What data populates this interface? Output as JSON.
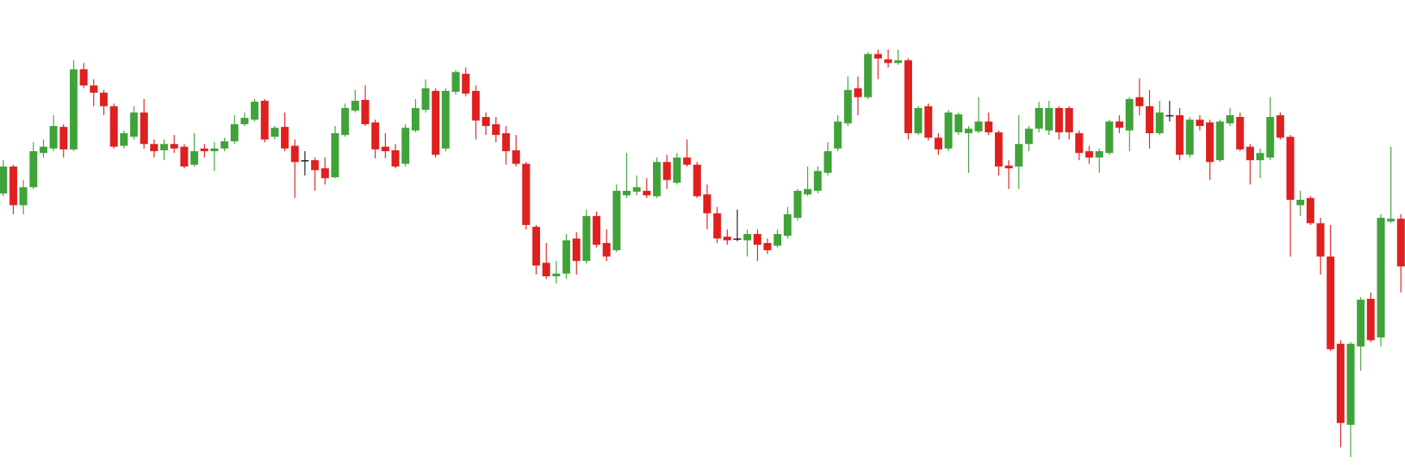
{
  "chart_data": {
    "type": "candlestick",
    "open": [
      361,
      391,
      348,
      368,
      406,
      411,
      435,
      410,
      499,
      481,
      473,
      458,
      414,
      424,
      451,
      416,
      409,
      416,
      413,
      393,
      411,
      408,
      411,
      419,
      438,
      443,
      464,
      424,
      435,
      414,
      398,
      398,
      389,
      379,
      426,
      453,
      465,
      440,
      413,
      409,
      394,
      431,
      454,
      475,
      411,
      474,
      494,
      475,
      446,
      438,
      428,
      409,
      394,
      324,
      284,
      269,
      272,
      311,
      286,
      336,
      306,
      298,
      359,
      363,
      364,
      358,
      396,
      373,
      401,
      393,
      360,
      339,
      313,
      311,
      309,
      316,
      306,
      303,
      314,
      334,
      360,
      364,
      384,
      411,
      439,
      478,
      468,
      516,
      510,
      506,
      509,
      428,
      458,
      423,
      411,
      429,
      428,
      430,
      441,
      429,
      392,
      391,
      416,
      433,
      431,
      456,
      456,
      428,
      408,
      401,
      406,
      441,
      431,
      468,
      458,
      428,
      448,
      448,
      404,
      443,
      440,
      398,
      439,
      446,
      413,
      398,
      401,
      448,
      424,
      348,
      356,
      328,
      291,
      194,
      104,
      191,
      244,
      201,
      330,
      333
    ],
    "high": [
      398,
      393,
      376,
      418,
      421,
      448,
      438,
      509,
      506,
      488,
      476,
      461,
      431,
      458,
      466,
      421,
      421,
      426,
      416,
      428,
      416,
      418,
      423,
      448,
      451,
      466,
      466,
      436,
      451,
      421,
      408,
      401,
      401,
      436,
      461,
      476,
      481,
      443,
      428,
      416,
      438,
      466,
      488,
      478,
      478,
      498,
      501,
      481,
      451,
      446,
      436,
      426,
      396,
      326,
      306,
      286,
      316,
      318,
      343,
      341,
      321,
      371,
      406,
      381,
      378,
      401,
      404,
      406,
      421,
      396,
      371,
      346,
      321,
      343,
      321,
      321,
      311,
      321,
      346,
      366,
      391,
      391,
      418,
      448,
      491,
      491,
      518,
      521,
      521,
      521,
      511,
      458,
      461,
      428,
      454,
      451,
      436,
      468,
      451,
      431,
      398,
      448,
      436,
      463,
      464,
      458,
      458,
      431,
      414,
      411,
      443,
      448,
      468,
      489,
      476,
      464,
      464,
      456,
      446,
      448,
      443,
      443,
      456,
      451,
      416,
      411,
      468,
      451,
      426,
      364,
      358,
      334,
      326,
      198,
      196,
      246,
      251,
      338,
      413,
      338
    ],
    "low": [
      358,
      338,
      338,
      366,
      401,
      408,
      401,
      408,
      478,
      458,
      448,
      411,
      411,
      421,
      411,
      401,
      398,
      406,
      389,
      391,
      401,
      386,
      408,
      416,
      436,
      441,
      418,
      421,
      408,
      356,
      381,
      364,
      371,
      378,
      424,
      451,
      436,
      400,
      400,
      389,
      391,
      429,
      451,
      401,
      408,
      471,
      469,
      421,
      426,
      418,
      393,
      391,
      321,
      271,
      266,
      261,
      266,
      271,
      283,
      301,
      286,
      296,
      356,
      359,
      356,
      356,
      366,
      371,
      391,
      356,
      321,
      306,
      304,
      308,
      291,
      286,
      294,
      301,
      311,
      331,
      358,
      361,
      381,
      408,
      436,
      448,
      466,
      488,
      501,
      504,
      421,
      426,
      420,
      404,
      408,
      426,
      384,
      428,
      426,
      381,
      366,
      366,
      408,
      429,
      426,
      421,
      421,
      398,
      394,
      384,
      404,
      428,
      408,
      448,
      411,
      426,
      441,
      398,
      401,
      431,
      376,
      396,
      436,
      408,
      371,
      378,
      398,
      421,
      291,
      336,
      326,
      271,
      186,
      79,
      68,
      164,
      196,
      191,
      328,
      251
    ],
    "close": [
      391,
      348,
      368,
      408,
      413,
      436,
      410,
      499,
      481,
      473,
      458,
      413,
      428,
      451,
      416,
      408,
      416,
      411,
      391,
      408,
      408,
      411,
      419,
      438,
      445,
      463,
      421,
      434,
      411,
      396,
      398,
      387,
      378,
      428,
      456,
      464,
      438,
      410,
      408,
      391,
      434,
      456,
      478,
      404,
      475,
      496,
      472,
      442,
      436,
      426,
      408,
      394,
      326,
      281,
      269,
      272,
      309,
      286,
      336,
      304,
      291,
      364,
      364,
      368,
      359,
      396,
      376,
      401,
      393,
      358,
      339,
      311,
      309,
      311,
      316,
      304,
      298,
      316,
      338,
      364,
      366,
      386,
      408,
      441,
      476,
      468,
      516,
      511,
      506,
      509,
      428,
      456,
      423,
      410,
      451,
      449,
      433,
      441,
      429,
      391,
      389,
      416,
      433,
      456,
      456,
      429,
      429,
      406,
      401,
      408,
      441,
      434,
      466,
      458,
      428,
      451,
      448,
      404,
      443,
      436,
      396,
      441,
      448,
      410,
      398,
      406,
      446,
      423,
      354,
      354,
      328,
      291,
      188,
      106,
      194,
      243,
      198,
      334,
      333,
      280
    ],
    "ylim": [
      56,
      576
    ],
    "up_color": "#3fa33a",
    "down_color": "#e01f1f",
    "doji_color": "#1a1a1a"
  }
}
